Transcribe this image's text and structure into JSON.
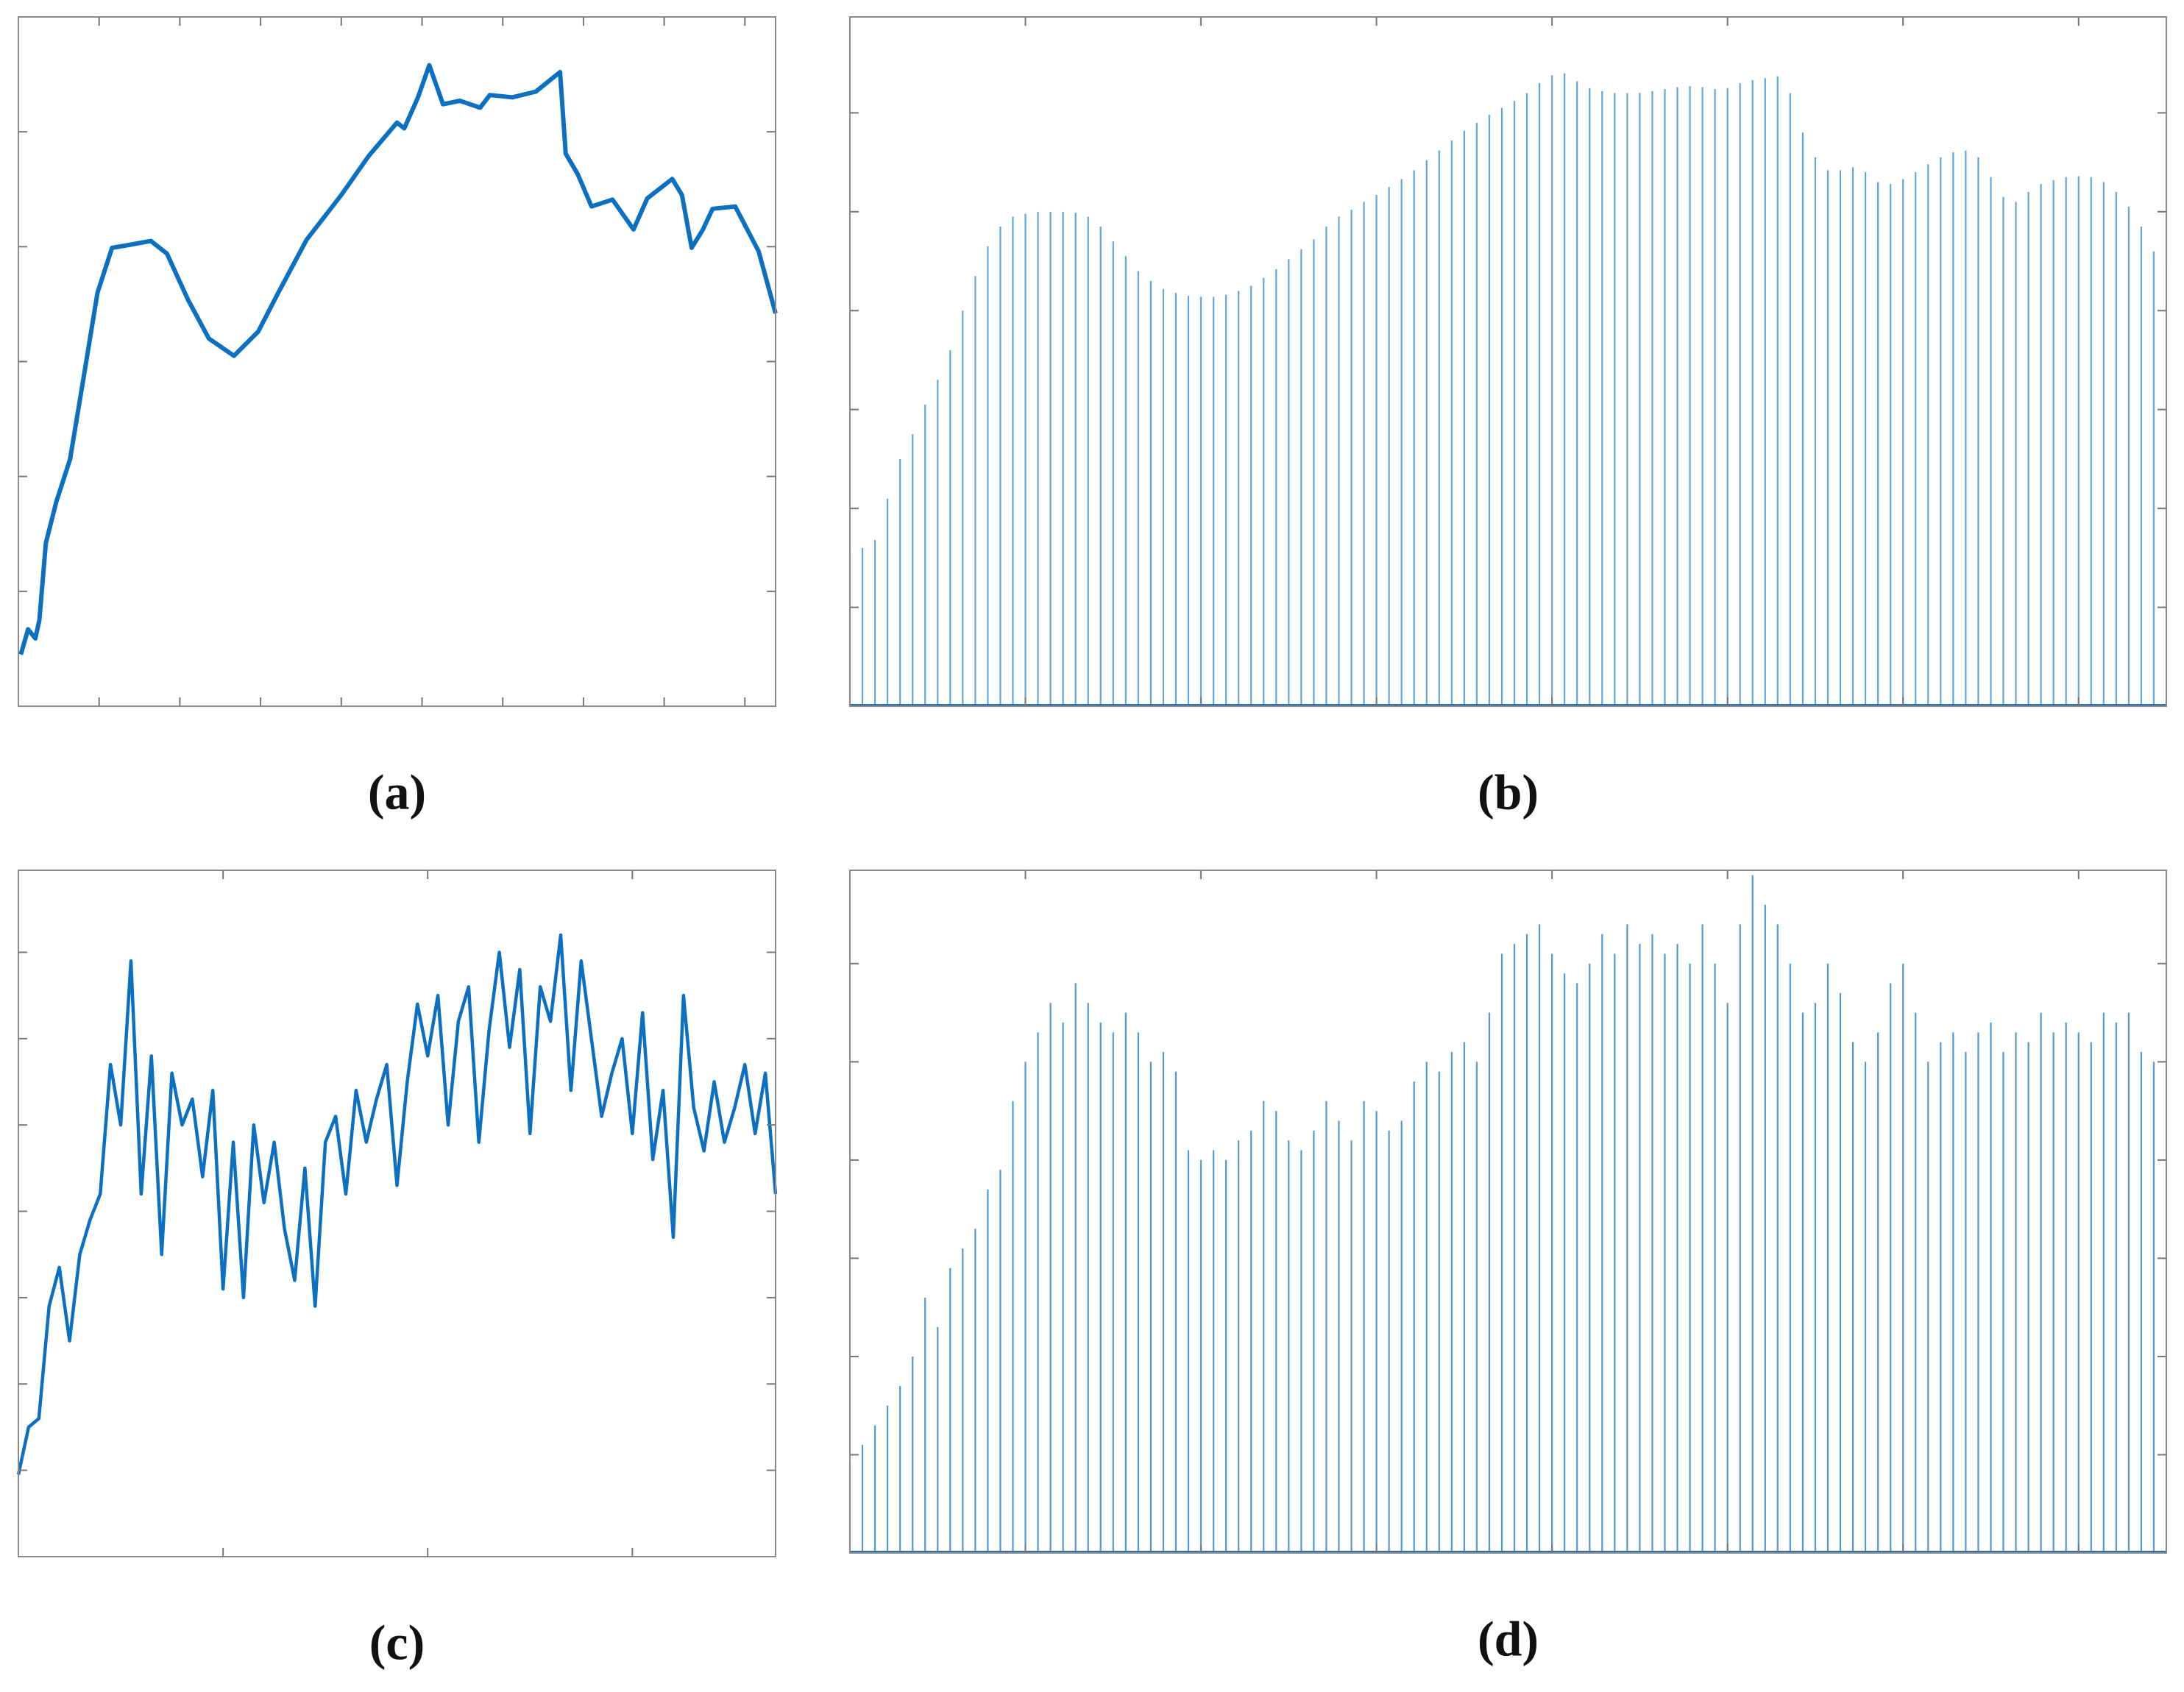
{
  "chart_data": [
    {
      "type": "line",
      "title": "(a)",
      "color": "#0b6fc2",
      "x": [
        0.03,
        0.12,
        0.21,
        0.26,
        0.34,
        0.47,
        0.64,
        0.81,
        0.98,
        1.16,
        1.33,
        1.64,
        1.84,
        2.1,
        2.36,
        2.67,
        2.97,
        3.22,
        3.57,
        4.0,
        4.34,
        4.69,
        4.78,
        4.95,
        5.09,
        5.26,
        5.47,
        5.72,
        5.84,
        6.12,
        6.41,
        6.71,
        6.78,
        6.93,
        7.1,
        7.36,
        7.62,
        7.79,
        8.1,
        8.22,
        8.34,
        8.48,
        8.6,
        8.88,
        9.17,
        9.38
      ],
      "values": [
        0.45,
        0.67,
        0.59,
        0.75,
        1.42,
        1.78,
        2.15,
        2.87,
        3.6,
        3.99,
        4.01,
        4.05,
        3.94,
        3.54,
        3.2,
        3.05,
        3.26,
        3.6,
        4.06,
        4.45,
        4.79,
        5.08,
        5.03,
        5.3,
        5.58,
        5.24,
        5.27,
        5.21,
        5.32,
        5.3,
        5.35,
        5.52,
        4.81,
        4.63,
        4.35,
        4.41,
        4.15,
        4.42,
        4.59,
        4.45,
        3.99,
        4.15,
        4.33,
        4.35,
        3.96,
        3.42
      ],
      "xlim": [
        0,
        9.38
      ],
      "ylim": [
        0,
        6
      ],
      "xticks": [
        1,
        2,
        3,
        4,
        5,
        6,
        7,
        8,
        9
      ],
      "yticks": [
        1,
        2,
        3,
        4,
        5
      ]
    },
    {
      "type": "stem",
      "title": "(b)",
      "color": "#5fa6dc",
      "values": [
        1.55,
        1.6,
        1.68,
        2.1,
        2.5,
        2.75,
        3.05,
        3.3,
        3.6,
        4.0,
        4.35,
        4.65,
        4.85,
        4.95,
        4.98,
        5.0,
        5.0,
        5.0,
        4.99,
        4.95,
        4.85,
        4.7,
        4.55,
        4.4,
        4.3,
        4.22,
        4.18,
        4.15,
        4.14,
        4.14,
        4.16,
        4.2,
        4.25,
        4.33,
        4.42,
        4.52,
        4.62,
        4.72,
        4.85,
        4.95,
        5.02,
        5.1,
        5.17,
        5.25,
        5.33,
        5.42,
        5.52,
        5.62,
        5.72,
        5.82,
        5.9,
        5.98,
        6.05,
        6.12,
        6.2,
        6.3,
        6.38,
        6.4,
        6.32,
        6.25,
        6.22,
        6.2,
        6.2,
        6.2,
        6.22,
        6.24,
        6.26,
        6.27,
        6.26,
        6.24,
        6.25,
        6.3,
        6.33,
        6.35,
        6.37,
        6.2,
        5.8,
        5.55,
        5.42,
        5.42,
        5.45,
        5.4,
        5.3,
        5.28,
        5.33,
        5.4,
        5.48,
        5.55,
        5.6,
        5.62,
        5.55,
        5.35,
        5.15,
        5.1,
        5.2,
        5.28,
        5.32,
        5.35,
        5.36,
        5.35,
        5.3,
        5.2,
        5.05,
        4.85,
        4.6,
        4.45
      ],
      "xlim": [
        0,
        105
      ],
      "ylim": [
        0,
        6.97
      ],
      "xticks": [
        14,
        28,
        42,
        56,
        70,
        84,
        98
      ],
      "yticks": [
        1,
        2,
        3,
        4,
        5,
        6
      ]
    },
    {
      "type": "line",
      "title": "(c)",
      "color": "#0b6fc2",
      "x": [
        0,
        0.05,
        0.1,
        0.15,
        0.2,
        0.25,
        0.3,
        0.35,
        0.4,
        0.45,
        0.5,
        0.55,
        0.6,
        0.65,
        0.7,
        0.75,
        0.8,
        0.85,
        0.9,
        0.95,
        1.0,
        1.05,
        1.1,
        1.15,
        1.2,
        1.25,
        1.3,
        1.35,
        1.4,
        1.45,
        1.5,
        1.55,
        1.6,
        1.65,
        1.7,
        1.75,
        1.8,
        1.85,
        1.9,
        1.95,
        2.0,
        2.05,
        2.1,
        2.15,
        2.2,
        2.25,
        2.3,
        2.35,
        2.4,
        2.45,
        2.5,
        2.55,
        2.6,
        2.65,
        2.7,
        2.75,
        2.8,
        2.85,
        2.9,
        2.95,
        3.0,
        3.05,
        3.1,
        3.15,
        3.2,
        3.25,
        3.3,
        3.35,
        3.4,
        3.45,
        3.5,
        3.55,
        3.6,
        3.65,
        3.7
      ],
      "values": [
        0.95,
        1.5,
        1.6,
        2.9,
        3.35,
        2.5,
        3.5,
        3.9,
        4.2,
        5.7,
        5.0,
        6.9,
        4.2,
        5.8,
        3.5,
        5.6,
        5.0,
        5.3,
        4.4,
        5.4,
        3.1,
        4.8,
        3.0,
        5.0,
        4.1,
        4.8,
        3.8,
        3.2,
        4.5,
        2.9,
        4.8,
        5.1,
        4.2,
        5.4,
        4.8,
        5.3,
        5.7,
        4.3,
        5.5,
        6.4,
        5.8,
        6.5,
        5.0,
        6.2,
        6.6,
        4.8,
        6.1,
        7.0,
        5.9,
        6.8,
        4.9,
        6.6,
        6.2,
        7.2,
        5.4,
        6.9,
        6.0,
        5.1,
        5.6,
        6.0,
        4.9,
        6.3,
        4.6,
        5.4,
        3.7,
        6.5,
        5.2,
        4.7,
        5.5,
        4.8,
        5.2,
        5.7,
        4.9,
        5.6,
        4.2
      ],
      "xlim": [
        0,
        3.7
      ],
      "ylim": [
        0,
        7.95
      ],
      "xticks": [
        1,
        2,
        3
      ],
      "yticks": [
        1,
        2,
        3,
        4,
        5,
        6,
        7
      ]
    },
    {
      "type": "stem",
      "title": "(d)",
      "color": "#4f9ad6",
      "values": [
        0.92,
        1.1,
        1.3,
        1.5,
        1.7,
        2.0,
        2.6,
        2.3,
        2.9,
        3.1,
        3.3,
        3.7,
        3.9,
        4.6,
        5.0,
        5.3,
        5.6,
        5.4,
        5.8,
        5.6,
        5.4,
        5.3,
        5.5,
        5.3,
        5.0,
        5.1,
        4.9,
        4.1,
        4.0,
        4.1,
        4.0,
        4.2,
        4.3,
        4.6,
        4.5,
        4.2,
        4.1,
        4.3,
        4.6,
        4.4,
        4.2,
        4.6,
        4.5,
        4.3,
        4.4,
        4.8,
        5.0,
        4.9,
        5.1,
        5.2,
        5.0,
        5.5,
        6.1,
        6.2,
        6.3,
        6.4,
        6.1,
        5.9,
        5.8,
        6.0,
        6.3,
        6.1,
        6.4,
        6.2,
        6.3,
        6.1,
        6.2,
        6.0,
        6.4,
        6.0,
        5.6,
        6.4,
        6.9,
        6.6,
        6.4,
        6.0,
        5.5,
        5.6,
        6.0,
        5.7,
        5.2,
        5.0,
        5.3,
        5.8,
        6.0,
        5.5,
        5.0,
        5.2,
        5.3,
        5.1,
        5.3,
        5.4,
        5.1,
        5.3,
        5.2,
        5.5,
        5.3,
        5.4,
        5.3,
        5.2,
        5.5,
        5.4,
        5.5,
        5.1,
        5.0,
        5.0
      ],
      "xlim": [
        0,
        105
      ],
      "ylim": [
        0,
        6.95
      ],
      "xticks": [
        14,
        28,
        42,
        56,
        70,
        84,
        98
      ],
      "yticks": [
        1,
        2,
        3,
        4,
        5,
        6
      ]
    }
  ]
}
